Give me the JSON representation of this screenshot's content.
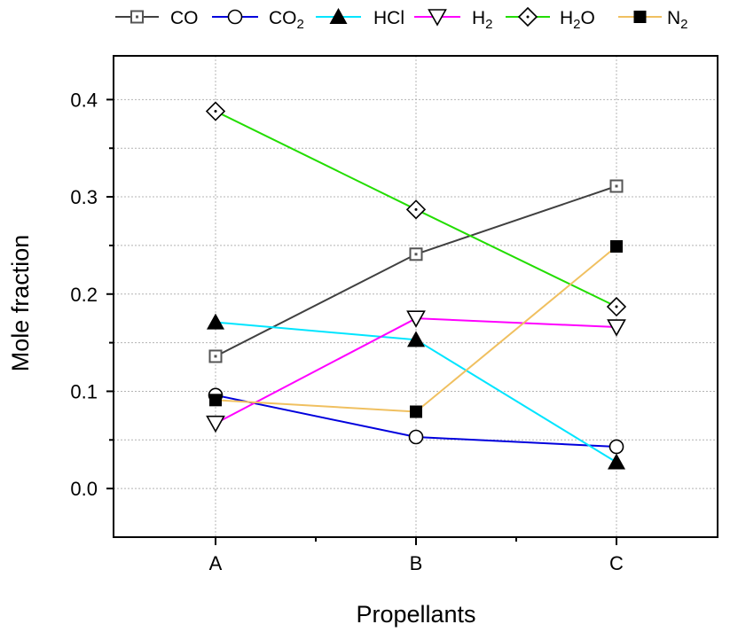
{
  "chart_data": {
    "type": "line",
    "xlabel": "Propellants",
    "ylabel": "Mole fraction",
    "categories": [
      "A",
      "B",
      "C"
    ],
    "ylim": [
      -0.05,
      0.445
    ],
    "yticks": [
      0.0,
      0.1,
      0.2,
      0.3,
      0.4
    ],
    "ytick_labels": [
      "0.0",
      "0.1",
      "0.2",
      "0.3",
      "0.4"
    ],
    "grid": true,
    "legend_position": "top",
    "series": [
      {
        "name": "CO",
        "name_base": "CO",
        "name_sub": "",
        "color": "#404040",
        "marker": "square-dot",
        "values": [
          0.136,
          0.241,
          0.311
        ]
      },
      {
        "name": "CO2",
        "name_base": "CO",
        "name_sub": "2",
        "color": "#0000dd",
        "marker": "circle-open",
        "values": [
          0.096,
          0.053,
          0.043
        ]
      },
      {
        "name": "HCl",
        "name_base": "HCl",
        "name_sub": "",
        "color": "#00e5ff",
        "marker": "triangle-up-filled",
        "values": [
          0.171,
          0.153,
          0.027
        ]
      },
      {
        "name": "H2",
        "name_base": "H",
        "name_sub": "2",
        "color": "#ff00ff",
        "marker": "triangle-down-open",
        "values": [
          0.067,
          0.175,
          0.166
        ]
      },
      {
        "name": "H2O",
        "name_base": "H",
        "name_sub": "2",
        "name_tail": "O",
        "color": "#22dd00",
        "marker": "diamond-dot",
        "values": [
          0.388,
          0.287,
          0.187
        ]
      },
      {
        "name": "N2",
        "name_base": "N",
        "name_sub": "2",
        "color": "#f0c060",
        "marker": "square-filled",
        "values": [
          0.091,
          0.079,
          0.249
        ]
      }
    ]
  }
}
